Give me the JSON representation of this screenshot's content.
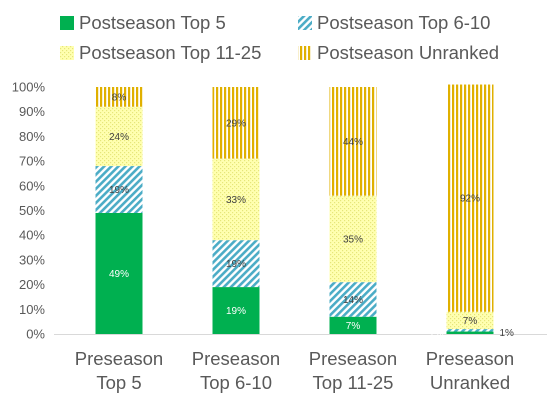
{
  "chart_data": {
    "type": "bar",
    "stacked": true,
    "percent": true,
    "categories": [
      [
        "Preseason",
        "Top 5"
      ],
      [
        "Preseason",
        "Top 6-10"
      ],
      [
        "Preseason",
        "Top 11-25"
      ],
      [
        "Preseason",
        "Unranked"
      ]
    ],
    "series": [
      {
        "name": "Postseason Top 5",
        "values": [
          49,
          19,
          7,
          1
        ],
        "labels": [
          "49%",
          "19%",
          "7%",
          "1%"
        ],
        "color": "#00b050",
        "pattern": "solid"
      },
      {
        "name": "Postseason Top 6-10",
        "values": [
          19,
          19,
          14,
          1
        ],
        "labels": [
          "19%",
          "19%",
          "14%",
          "1%"
        ],
        "color": "#4bacc6",
        "pattern": "diagonal"
      },
      {
        "name": "Postseason Top 11-25",
        "values": [
          24,
          33,
          35,
          7
        ],
        "labels": [
          "24%",
          "33%",
          "35%",
          "7%"
        ],
        "color": "#ffff99",
        "pattern": "dotted"
      },
      {
        "name": "Postseason Unranked",
        "values": [
          8,
          29,
          44,
          92
        ],
        "labels": [
          "8%",
          "29%",
          "44%",
          "92%"
        ],
        "color": "#ffc000",
        "pattern": "vertical"
      }
    ],
    "ylim": [
      0,
      100
    ],
    "yticks": [
      "0%",
      "10%",
      "20%",
      "30%",
      "40%",
      "50%",
      "60%",
      "70%",
      "80%",
      "90%",
      "100%"
    ],
    "legend_position": "top",
    "grid": false
  }
}
